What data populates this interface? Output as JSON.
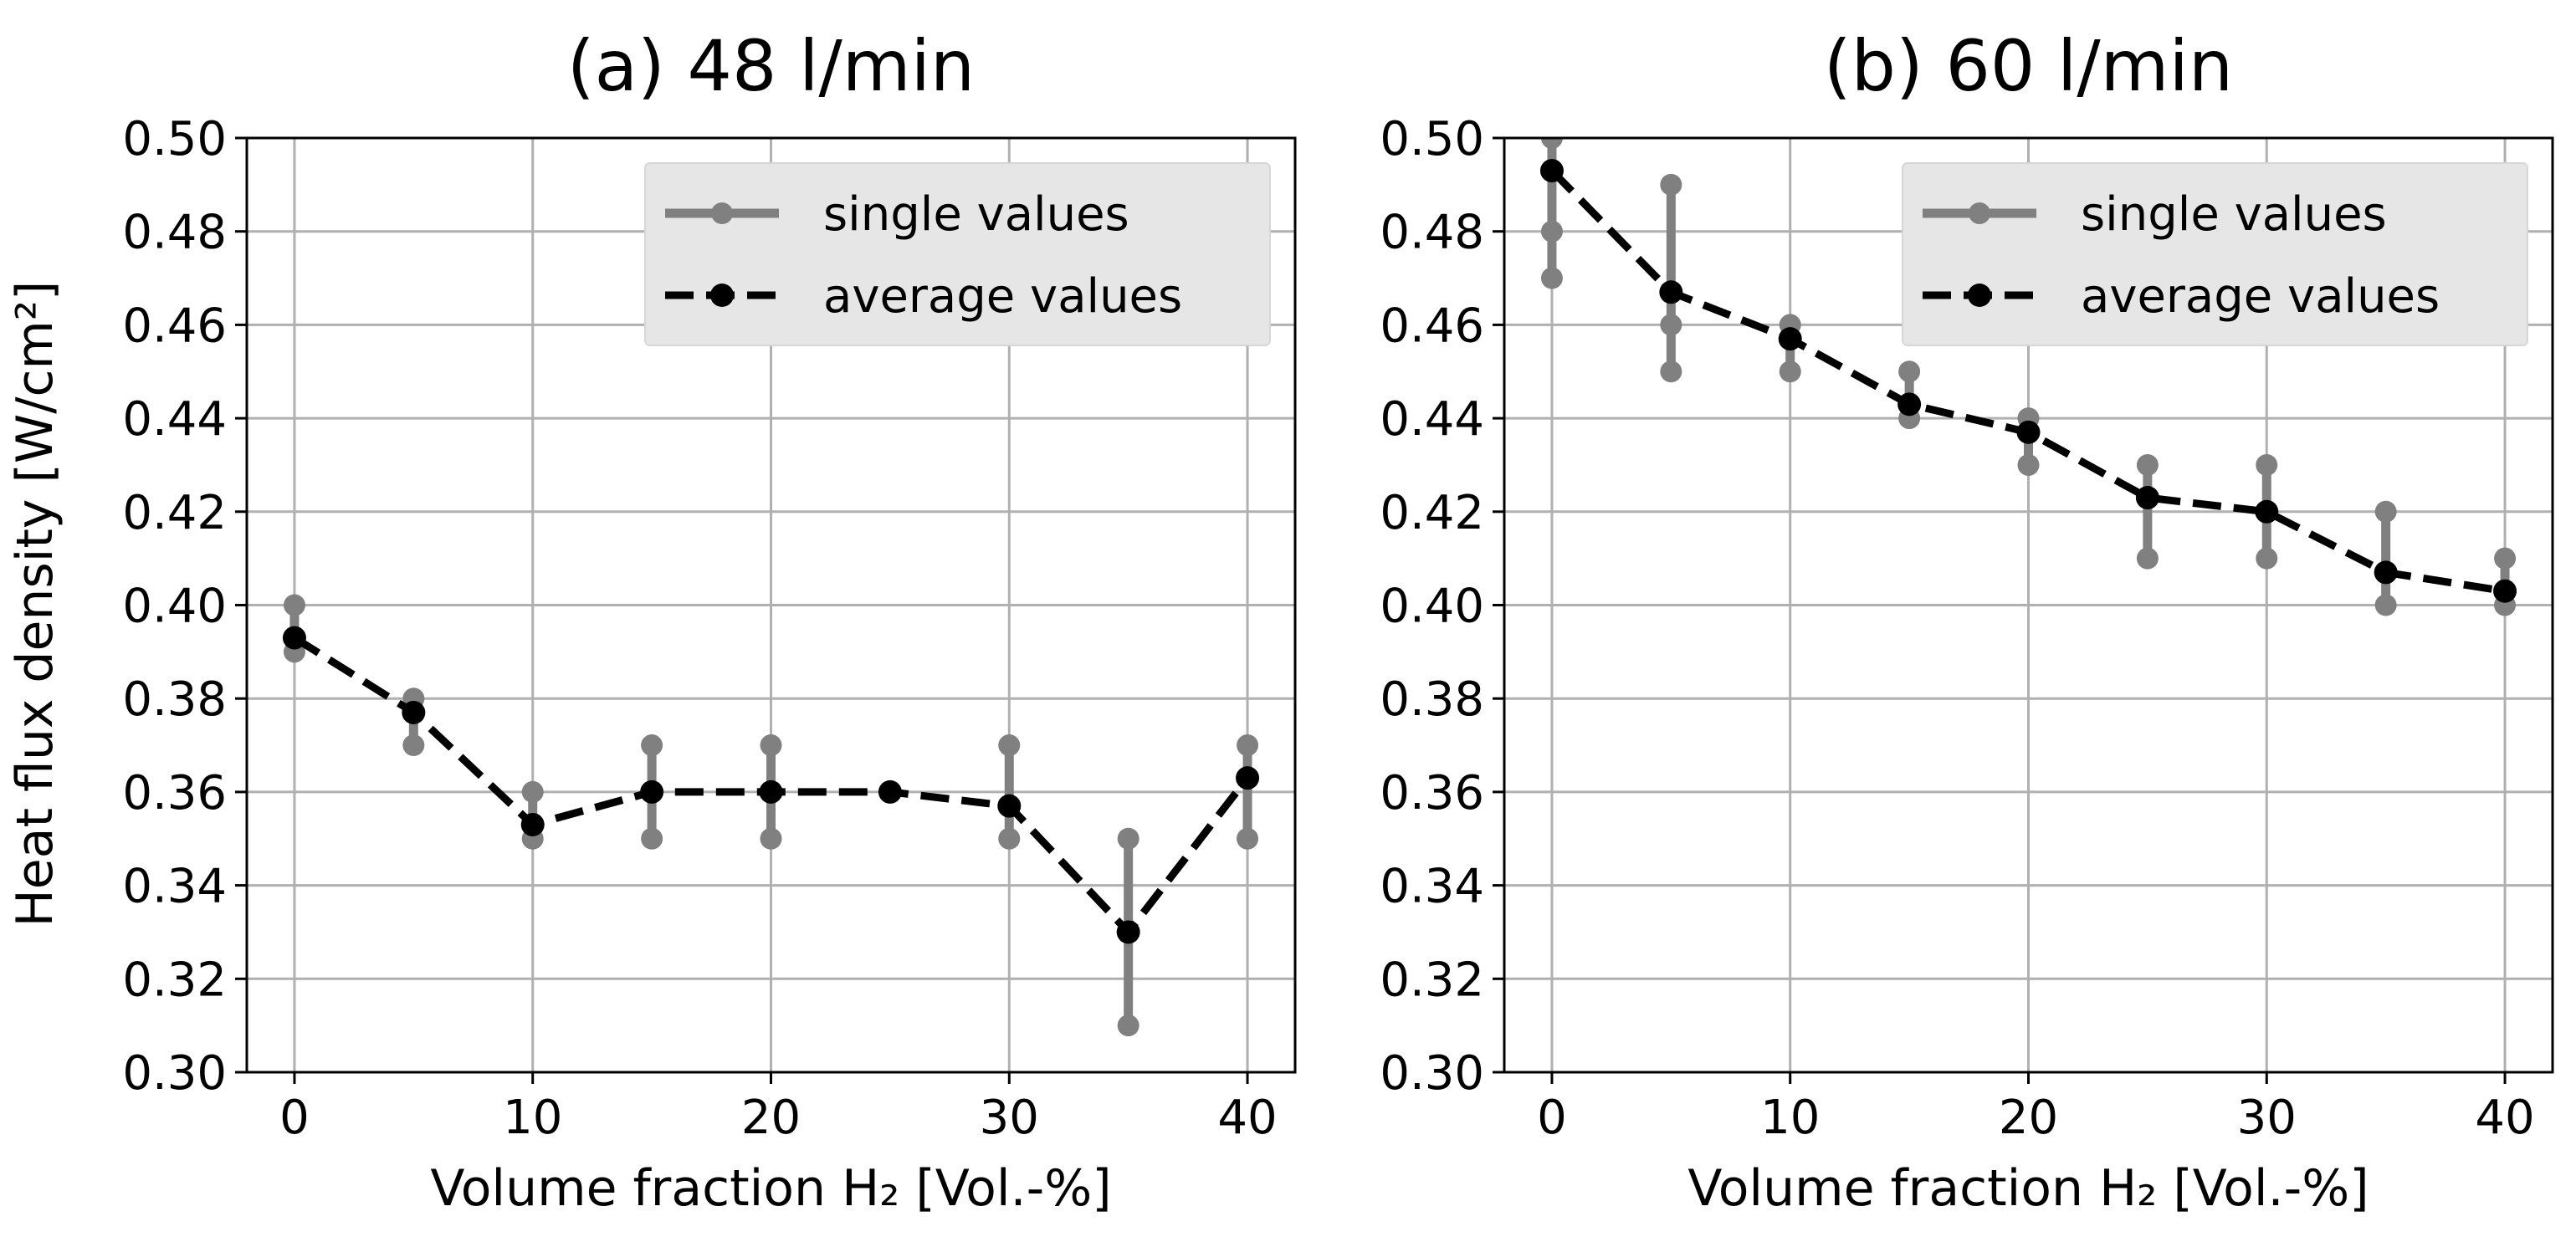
{
  "chart_data": [
    {
      "type": "line",
      "title": "(a) 48 l/min",
      "xlabel": "Volume fraction H₂ [Vol.-%]",
      "ylabel": "Heat flux density [W/cm²]",
      "xlim": [
        -2,
        42
      ],
      "ylim": [
        0.3,
        0.5
      ],
      "xticks": [
        0,
        10,
        20,
        30,
        40
      ],
      "yticks": [
        0.3,
        0.32,
        0.34,
        0.36,
        0.38,
        0.4,
        0.42,
        0.44,
        0.46,
        0.48,
        0.5
      ],
      "ytick_labels": [
        "0.30",
        "0.32",
        "0.34",
        "0.36",
        "0.38",
        "0.40",
        "0.42",
        "0.44",
        "0.46",
        "0.48",
        "0.50"
      ],
      "grid": true,
      "legend_position": "top-right",
      "series": [
        {
          "name": "single values",
          "style": "solid-gray",
          "color": "#808080",
          "points": [
            {
              "x": 0,
              "values": [
                0.39,
                0.4
              ]
            },
            {
              "x": 5,
              "values": [
                0.37,
                0.38
              ]
            },
            {
              "x": 10,
              "values": [
                0.35,
                0.36
              ]
            },
            {
              "x": 15,
              "values": [
                0.35,
                0.37
              ]
            },
            {
              "x": 20,
              "values": [
                0.35,
                0.37
              ]
            },
            {
              "x": 25,
              "values": [
                0.36
              ]
            },
            {
              "x": 30,
              "values": [
                0.35,
                0.37
              ]
            },
            {
              "x": 35,
              "values": [
                0.31,
                0.35
              ]
            },
            {
              "x": 40,
              "values": [
                0.35,
                0.37
              ]
            }
          ]
        },
        {
          "name": "average values",
          "style": "dashed-black",
          "color": "#000000",
          "x": [
            0,
            5,
            10,
            15,
            20,
            25,
            30,
            35,
            40
          ],
          "y": [
            0.393,
            0.377,
            0.353,
            0.36,
            0.36,
            0.36,
            0.357,
            0.33,
            0.363
          ]
        }
      ]
    },
    {
      "type": "line",
      "title": "(b) 60 l/min",
      "xlabel": "Volume fraction H₂ [Vol.-%]",
      "ylabel": "",
      "xlim": [
        -2,
        42
      ],
      "ylim": [
        0.3,
        0.5
      ],
      "xticks": [
        0,
        10,
        20,
        30,
        40
      ],
      "yticks": [
        0.3,
        0.32,
        0.34,
        0.36,
        0.38,
        0.4,
        0.42,
        0.44,
        0.46,
        0.48,
        0.5
      ],
      "ytick_labels": [
        "0.30",
        "0.32",
        "0.34",
        "0.36",
        "0.38",
        "0.40",
        "0.42",
        "0.44",
        "0.46",
        "0.48",
        "0.50"
      ],
      "grid": true,
      "legend_position": "top-right",
      "series": [
        {
          "name": "single values",
          "style": "solid-gray",
          "color": "#808080",
          "points": [
            {
              "x": 0,
              "values": [
                0.47,
                0.48,
                0.5
              ]
            },
            {
              "x": 5,
              "values": [
                0.45,
                0.46,
                0.49
              ]
            },
            {
              "x": 10,
              "values": [
                0.45,
                0.46
              ]
            },
            {
              "x": 15,
              "values": [
                0.44,
                0.45
              ]
            },
            {
              "x": 20,
              "values": [
                0.43,
                0.44
              ]
            },
            {
              "x": 25,
              "values": [
                0.41,
                0.43
              ]
            },
            {
              "x": 30,
              "values": [
                0.41,
                0.43
              ]
            },
            {
              "x": 35,
              "values": [
                0.4,
                0.42
              ]
            },
            {
              "x": 40,
              "values": [
                0.4,
                0.41
              ]
            }
          ]
        },
        {
          "name": "average values",
          "style": "dashed-black",
          "color": "#000000",
          "x": [
            0,
            5,
            10,
            15,
            20,
            25,
            30,
            35,
            40
          ],
          "y": [
            0.493,
            0.467,
            0.457,
            0.443,
            0.437,
            0.423,
            0.42,
            0.407,
            0.403
          ]
        }
      ]
    }
  ]
}
